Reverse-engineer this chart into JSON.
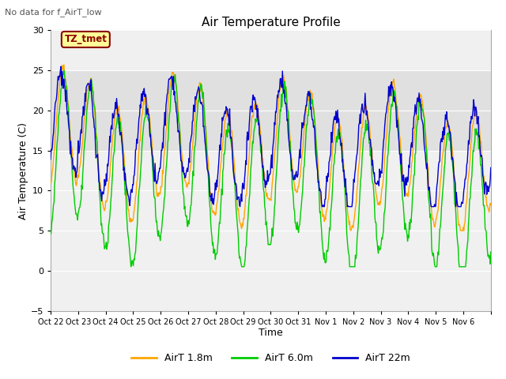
{
  "title": "Air Temperature Profile",
  "subtitle": "No data for f_AirT_low",
  "xlabel": "Time",
  "ylabel": "Air Temperature (C)",
  "ylim": [
    -5,
    30
  ],
  "yticks": [
    -5,
    0,
    5,
    10,
    15,
    20,
    25,
    30
  ],
  "xticklabels": [
    "Oct 22",
    "Oct 23",
    "Oct 24",
    "Oct 25",
    "Oct 26",
    "Oct 27",
    "Oct 28",
    "Oct 29",
    "Oct 30",
    "Oct 31",
    "Nov 1",
    "Nov 2",
    "Nov 3",
    "Nov 4",
    "Nov 5",
    "Nov 6"
  ],
  "annotation_label": "TZ_tmet",
  "annotation_color": "#8B0000",
  "annotation_bg": "#ffff99",
  "legend_labels": [
    "AirT 1.8m",
    "AirT 6.0m",
    "AirT 22m"
  ],
  "line_colors": [
    "#FFA500",
    "#00CC00",
    "#0000CC"
  ],
  "shaded_band": [
    15,
    25
  ],
  "shaded_color": "#e0e0e0",
  "background_color": "#ffffff",
  "plot_bg": "#f0f0f0",
  "n_days": 16
}
